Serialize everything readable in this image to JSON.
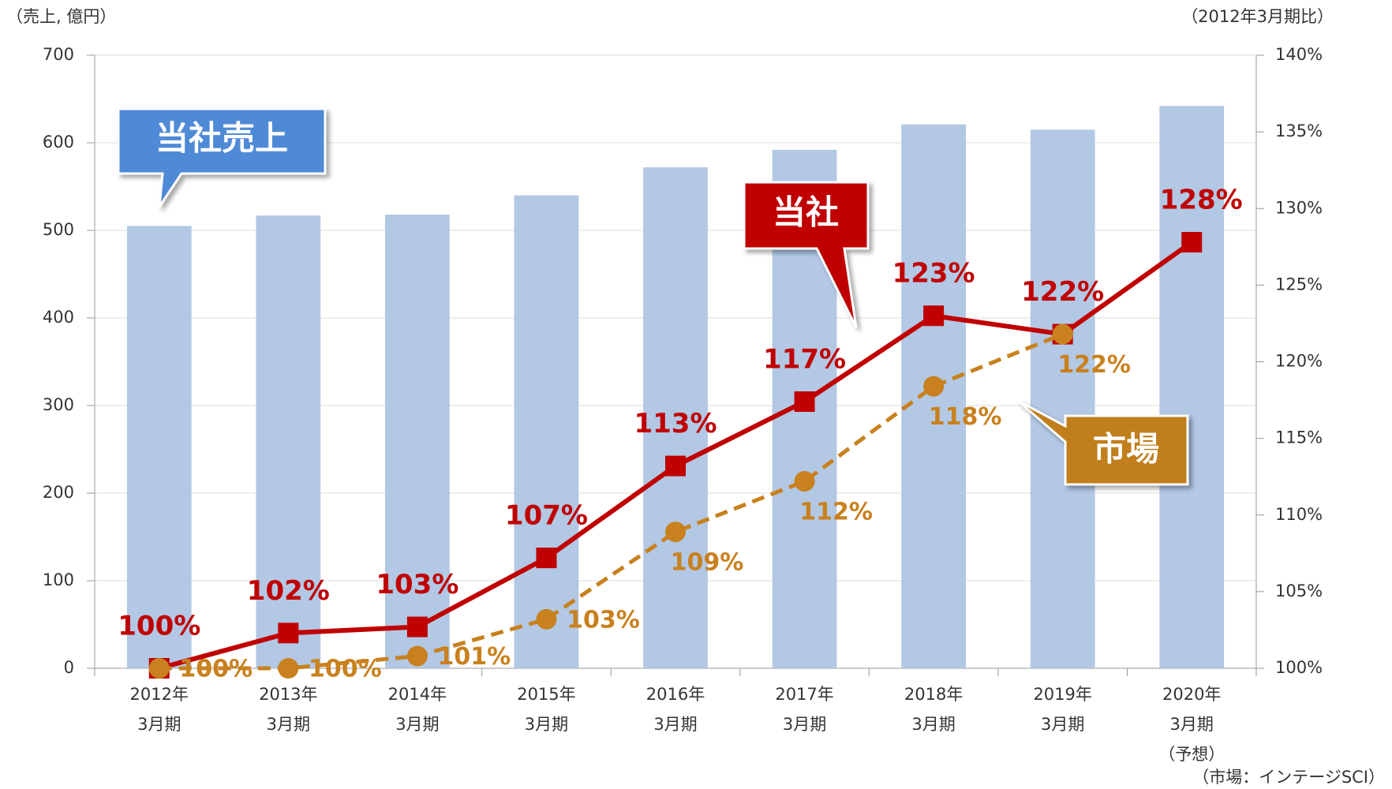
{
  "chart_data": {
    "type": "bar_line",
    "y_axis_label": "（売上, 億円）",
    "y2_axis_label": "（2012年3月期比）",
    "source": "（市場：インテージSCI）",
    "categories": [
      "2012年\n3月期",
      "2013年\n3月期",
      "2014年\n3月期",
      "2015年\n3月期",
      "2016年\n3月期",
      "2017年\n3月期",
      "2018年\n3月期",
      "2019年\n3月期",
      "2020年\n3月期\n（予想）"
    ],
    "series": [
      {
        "name": "当社売上",
        "type": "bar",
        "color": "#b2c8e4",
        "values": [
          505,
          517,
          518,
          540,
          572,
          592,
          621,
          615,
          642
        ]
      },
      {
        "name": "当社",
        "type": "line",
        "axis": "y2",
        "color": "#c00000",
        "marker": "square",
        "values": [
          100,
          102.3,
          102.7,
          107.2,
          113.2,
          117.4,
          123.0,
          121.8,
          127.8
        ],
        "value_labels": [
          "100%",
          "102%",
          "103%",
          "107%",
          "113%",
          "117%",
          "123%",
          "122%",
          "128%"
        ]
      },
      {
        "name": "市場",
        "type": "line",
        "axis": "y2",
        "color": "#c8811e",
        "marker": "circle",
        "dashed": true,
        "values": [
          100,
          100,
          100.8,
          103.2,
          108.9,
          112.2,
          118.4,
          121.8,
          null
        ],
        "value_labels": [
          "100%",
          "100%",
          "101%",
          "103%",
          "109%",
          "112%",
          "118%",
          "122%",
          null
        ]
      }
    ],
    "ylim": [
      0,
      700
    ],
    "yticks": [
      0,
      100,
      200,
      300,
      400,
      500,
      600,
      700
    ],
    "y2lim": [
      100,
      140
    ],
    "y2ticks": [
      {
        "value": 100,
        "label": "100%"
      },
      {
        "value": 105,
        "label": "105%"
      },
      {
        "value": 110,
        "label": "110%"
      },
      {
        "value": 115,
        "label": "115%"
      },
      {
        "value": 120,
        "label": "120%"
      },
      {
        "value": 125,
        "label": "125%"
      },
      {
        "value": 130,
        "label": "130%"
      },
      {
        "value": 135,
        "label": "135%"
      },
      {
        "value": 140,
        "label": "140%"
      }
    ],
    "grid": true
  }
}
